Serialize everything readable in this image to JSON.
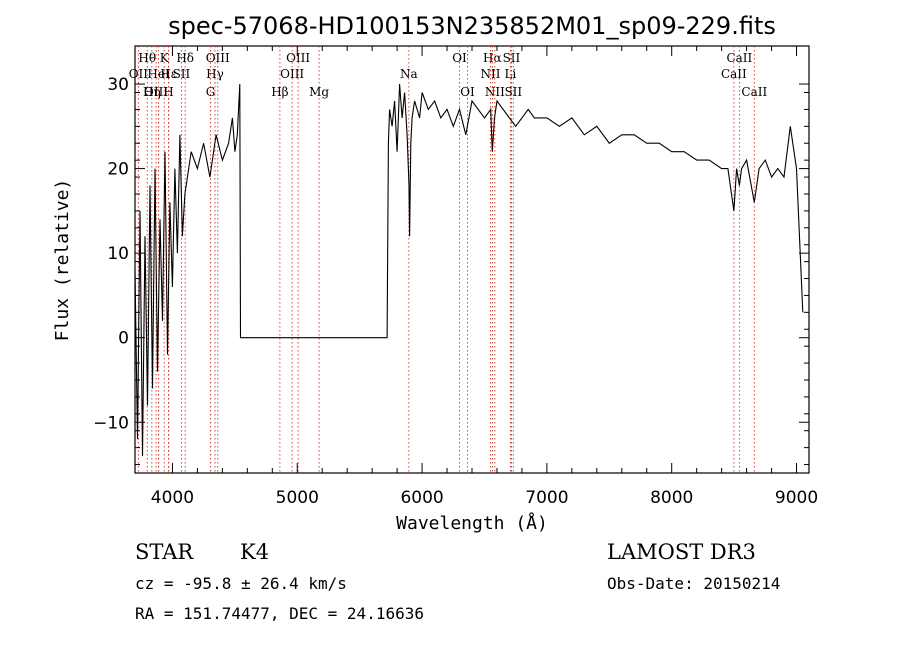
{
  "chart_data": {
    "type": "line",
    "title": "spec-57068-HD100153N235852M01_sp09-229.fits",
    "xlabel": "Wavelength (Å)",
    "ylabel": "Flux (relative)",
    "xlim": [
      3700,
      9100
    ],
    "ylim": [
      -16,
      34.5
    ],
    "xticks": [
      4000,
      5000,
      6000,
      7000,
      8000,
      9000
    ],
    "yticks": [
      -10,
      0,
      10,
      20,
      30
    ],
    "series": [
      {
        "name": "spectrum",
        "x": [
          3700,
          3720,
          3740,
          3760,
          3780,
          3800,
          3820,
          3840,
          3860,
          3880,
          3900,
          3920,
          3940,
          3960,
          3980,
          4000,
          4020,
          4040,
          4060,
          4080,
          4100,
          4150,
          4200,
          4250,
          4300,
          4350,
          4400,
          4450,
          4480,
          4500,
          4520,
          4540,
          4545,
          4600,
          4800,
          5000,
          5200,
          5400,
          5600,
          5720,
          5730,
          5740,
          5760,
          5780,
          5800,
          5820,
          5840,
          5860,
          5880,
          5895,
          5900,
          5910,
          5920,
          5940,
          5960,
          5980,
          6000,
          6050,
          6100,
          6150,
          6200,
          6250,
          6300,
          6350,
          6400,
          6450,
          6500,
          6550,
          6563,
          6580,
          6600,
          6650,
          6700,
          6750,
          6800,
          6850,
          6900,
          6950,
          7000,
          7100,
          7200,
          7300,
          7400,
          7500,
          7600,
          7700,
          7800,
          7900,
          8000,
          8100,
          8200,
          8300,
          8400,
          8450,
          8498,
          8520,
          8542,
          8560,
          8600,
          8662,
          8700,
          8750,
          8800,
          8850,
          8900,
          8950,
          9000,
          9050
        ],
        "y": [
          8,
          -12,
          15,
          -14,
          12,
          -8,
          18,
          -6,
          20,
          -4,
          14,
          2,
          22,
          -2,
          16,
          6,
          20,
          10,
          24,
          12,
          17,
          22,
          20,
          23,
          19,
          24,
          21,
          23,
          26,
          22,
          24,
          30,
          0,
          0,
          0,
          0,
          0,
          0,
          0,
          0,
          23,
          27,
          25,
          28,
          22,
          30,
          26,
          29,
          24,
          18,
          12,
          23,
          26,
          28,
          27,
          26,
          29,
          27,
          28,
          26,
          27,
          25,
          27,
          24,
          28,
          27,
          26,
          27,
          22,
          26,
          28,
          27,
          26,
          25,
          26,
          27,
          26,
          26,
          26,
          25,
          26,
          24,
          25,
          23,
          24,
          24,
          23,
          23,
          22,
          22,
          21,
          21,
          20,
          20,
          15,
          20,
          18,
          20,
          21,
          16,
          20,
          21,
          19,
          20,
          19,
          25,
          20,
          3
        ]
      }
    ],
    "line_markers": [
      {
        "label": "Hθ",
        "x": 3798,
        "row": 1
      },
      {
        "label": "OII",
        "x": 3727,
        "row": 2
      },
      {
        "label": "Hε",
        "x": 3970,
        "row": 2
      },
      {
        "label": "OIII",
        "x": 3869,
        "row": 3
      },
      {
        "label": "Hη",
        "x": 3835,
        "row": 3
      },
      {
        "label": "K",
        "x": 3934,
        "row": 1
      },
      {
        "label": "HeI",
        "x": 3889,
        "row": 2
      },
      {
        "label": "H",
        "x": 3968,
        "row": 3
      },
      {
        "label": "Hδ",
        "x": 4102,
        "row": 1
      },
      {
        "label": "SII",
        "x": 4072,
        "row": 2
      },
      {
        "label": "OIII",
        "x": 4363,
        "row": 1
      },
      {
        "label": "Hγ",
        "x": 4341,
        "row": 2
      },
      {
        "label": "G",
        "x": 4305,
        "row": 3
      },
      {
        "label": "OIII",
        "x": 5007,
        "row": 1
      },
      {
        "label": "OIII",
        "x": 4959,
        "row": 2
      },
      {
        "label": "Hβ",
        "x": 4861,
        "row": 3
      },
      {
        "label": "Mg",
        "x": 5175,
        "row": 3
      },
      {
        "label": "Na",
        "x": 5894,
        "row": 2
      },
      {
        "label": "OI",
        "x": 6300,
        "row": 1
      },
      {
        "label": "OI",
        "x": 6364,
        "row": 3
      },
      {
        "label": "Hα",
        "x": 6563,
        "row": 1
      },
      {
        "label": "NII",
        "x": 6548,
        "row": 2
      },
      {
        "label": "NII",
        "x": 6583,
        "row": 3
      },
      {
        "label": "SII",
        "x": 6716,
        "row": 1
      },
      {
        "label": "Li",
        "x": 6708,
        "row": 2
      },
      {
        "label": "SII",
        "x": 6731,
        "row": 3
      },
      {
        "label": "CaII",
        "x": 8542,
        "row": 1
      },
      {
        "label": "CaII",
        "x": 8498,
        "row": 2
      },
      {
        "label": "CaII",
        "x": 8662,
        "row": 3
      }
    ]
  },
  "info": {
    "class_label": "STAR",
    "subclass": "K4",
    "survey": "LAMOST DR3",
    "cz_line": "cz = -95.8 ± 26.4 km/s",
    "obs_date": "Obs-Date: 20150214",
    "coords": "RA = 151.74477, DEC =  24.16636"
  }
}
